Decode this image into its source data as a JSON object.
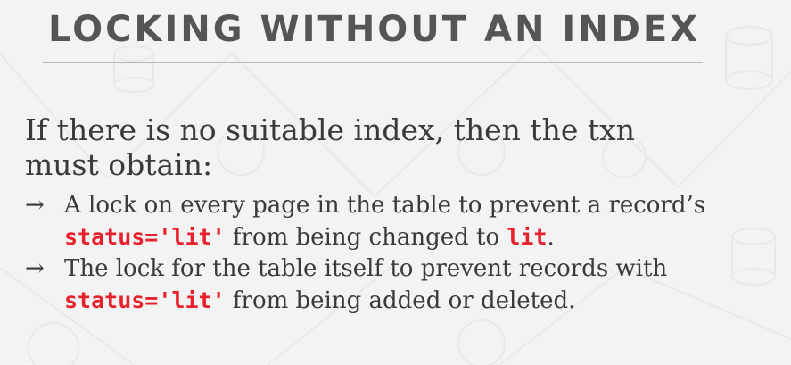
{
  "slide": {
    "title": "LOCKING WITHOUT AN INDEX",
    "intro": "If there is no suitable index, then the txn must obtain:",
    "bullet_glyph": "→",
    "bullets": [
      {
        "text_1": "A lock on every page in the table to prevent a record’s",
        "code_1": "status='lit'",
        "text_2": " from being changed to ",
        "code_2": "lit",
        "text_3": "."
      },
      {
        "text_1": "The lock for the table itself to prevent records with",
        "code_1": "status='lit'",
        "text_2": " from being added or deleted."
      }
    ]
  },
  "theme": {
    "title_color": "#555555",
    "text_color": "#3a3a3a",
    "code_color": "#e8222d",
    "background": "#f3f3f3"
  }
}
